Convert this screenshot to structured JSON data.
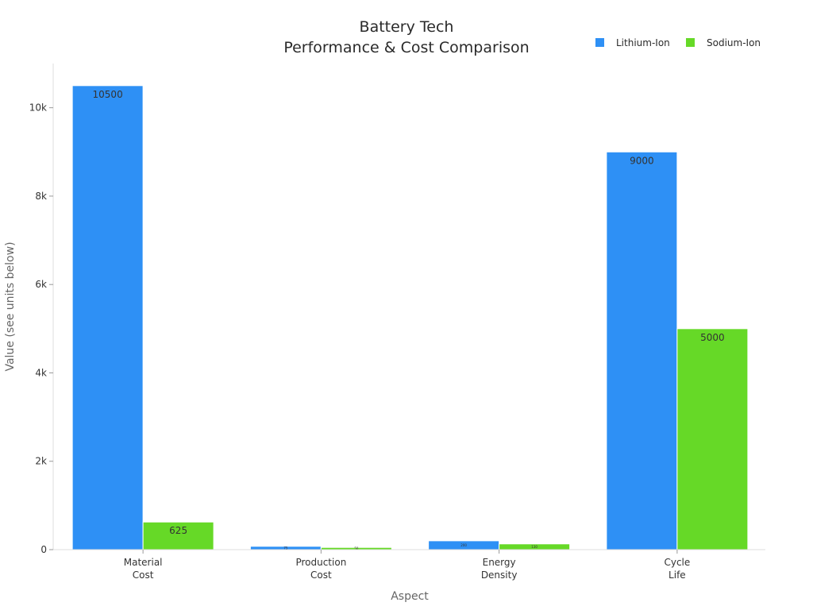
{
  "chart_data": {
    "type": "bar",
    "title_lines": [
      "Battery Tech",
      "Performance & Cost Comparison"
    ],
    "xlabel": "Aspect",
    "ylabel": "Value (see units below)",
    "categories": [
      [
        "Material",
        "Cost"
      ],
      [
        "Production",
        "Cost"
      ],
      [
        "Energy",
        "Density"
      ],
      [
        "Cycle",
        "Life"
      ]
    ],
    "series": [
      {
        "name": "Lithium-Ion",
        "color": "#2e90f5",
        "values": [
          10500,
          75,
          200,
          9000
        ]
      },
      {
        "name": "Sodium-Ion",
        "color": "#66d927",
        "values": [
          625,
          50,
          130,
          5000
        ]
      }
    ],
    "ylim": [
      0,
      11000
    ],
    "yticks": [
      0,
      2000,
      4000,
      6000,
      8000,
      10000
    ],
    "ytick_labels": [
      "0",
      "2k",
      "4k",
      "6k",
      "8k",
      "10k"
    ],
    "legend_position": "top-right",
    "grid": false
  }
}
